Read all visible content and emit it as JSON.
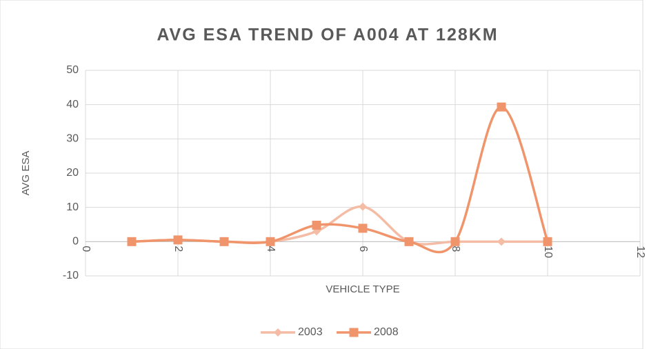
{
  "chart_data": {
    "type": "line",
    "title": "AVG ESA TREND OF A004 AT 128KM",
    "x_label": "VEHICLE TYPE",
    "y_label": "AVG ESA",
    "x": [
      1,
      2,
      3,
      4,
      5,
      6,
      7,
      8,
      9,
      10
    ],
    "series": [
      {
        "name": "2003",
        "color": "#f5bca5",
        "marker": "diamond",
        "values": [
          0,
          0.5,
          0,
          0,
          3,
          10.2,
          0,
          0,
          0,
          0
        ]
      },
      {
        "name": "2008",
        "color": "#f0956b",
        "marker": "square",
        "values": [
          0,
          0.5,
          0,
          0,
          4.8,
          3.9,
          0,
          0,
          39.3,
          0
        ]
      }
    ],
    "xlim": [
      0,
      12
    ],
    "xticks": [
      0,
      2,
      4,
      6,
      8,
      10,
      12
    ],
    "ylim": [
      -10,
      50
    ],
    "yticks": [
      -10,
      0,
      10,
      20,
      30,
      40,
      50
    ],
    "grid": true,
    "smooth": true,
    "legend": "bottom"
  }
}
